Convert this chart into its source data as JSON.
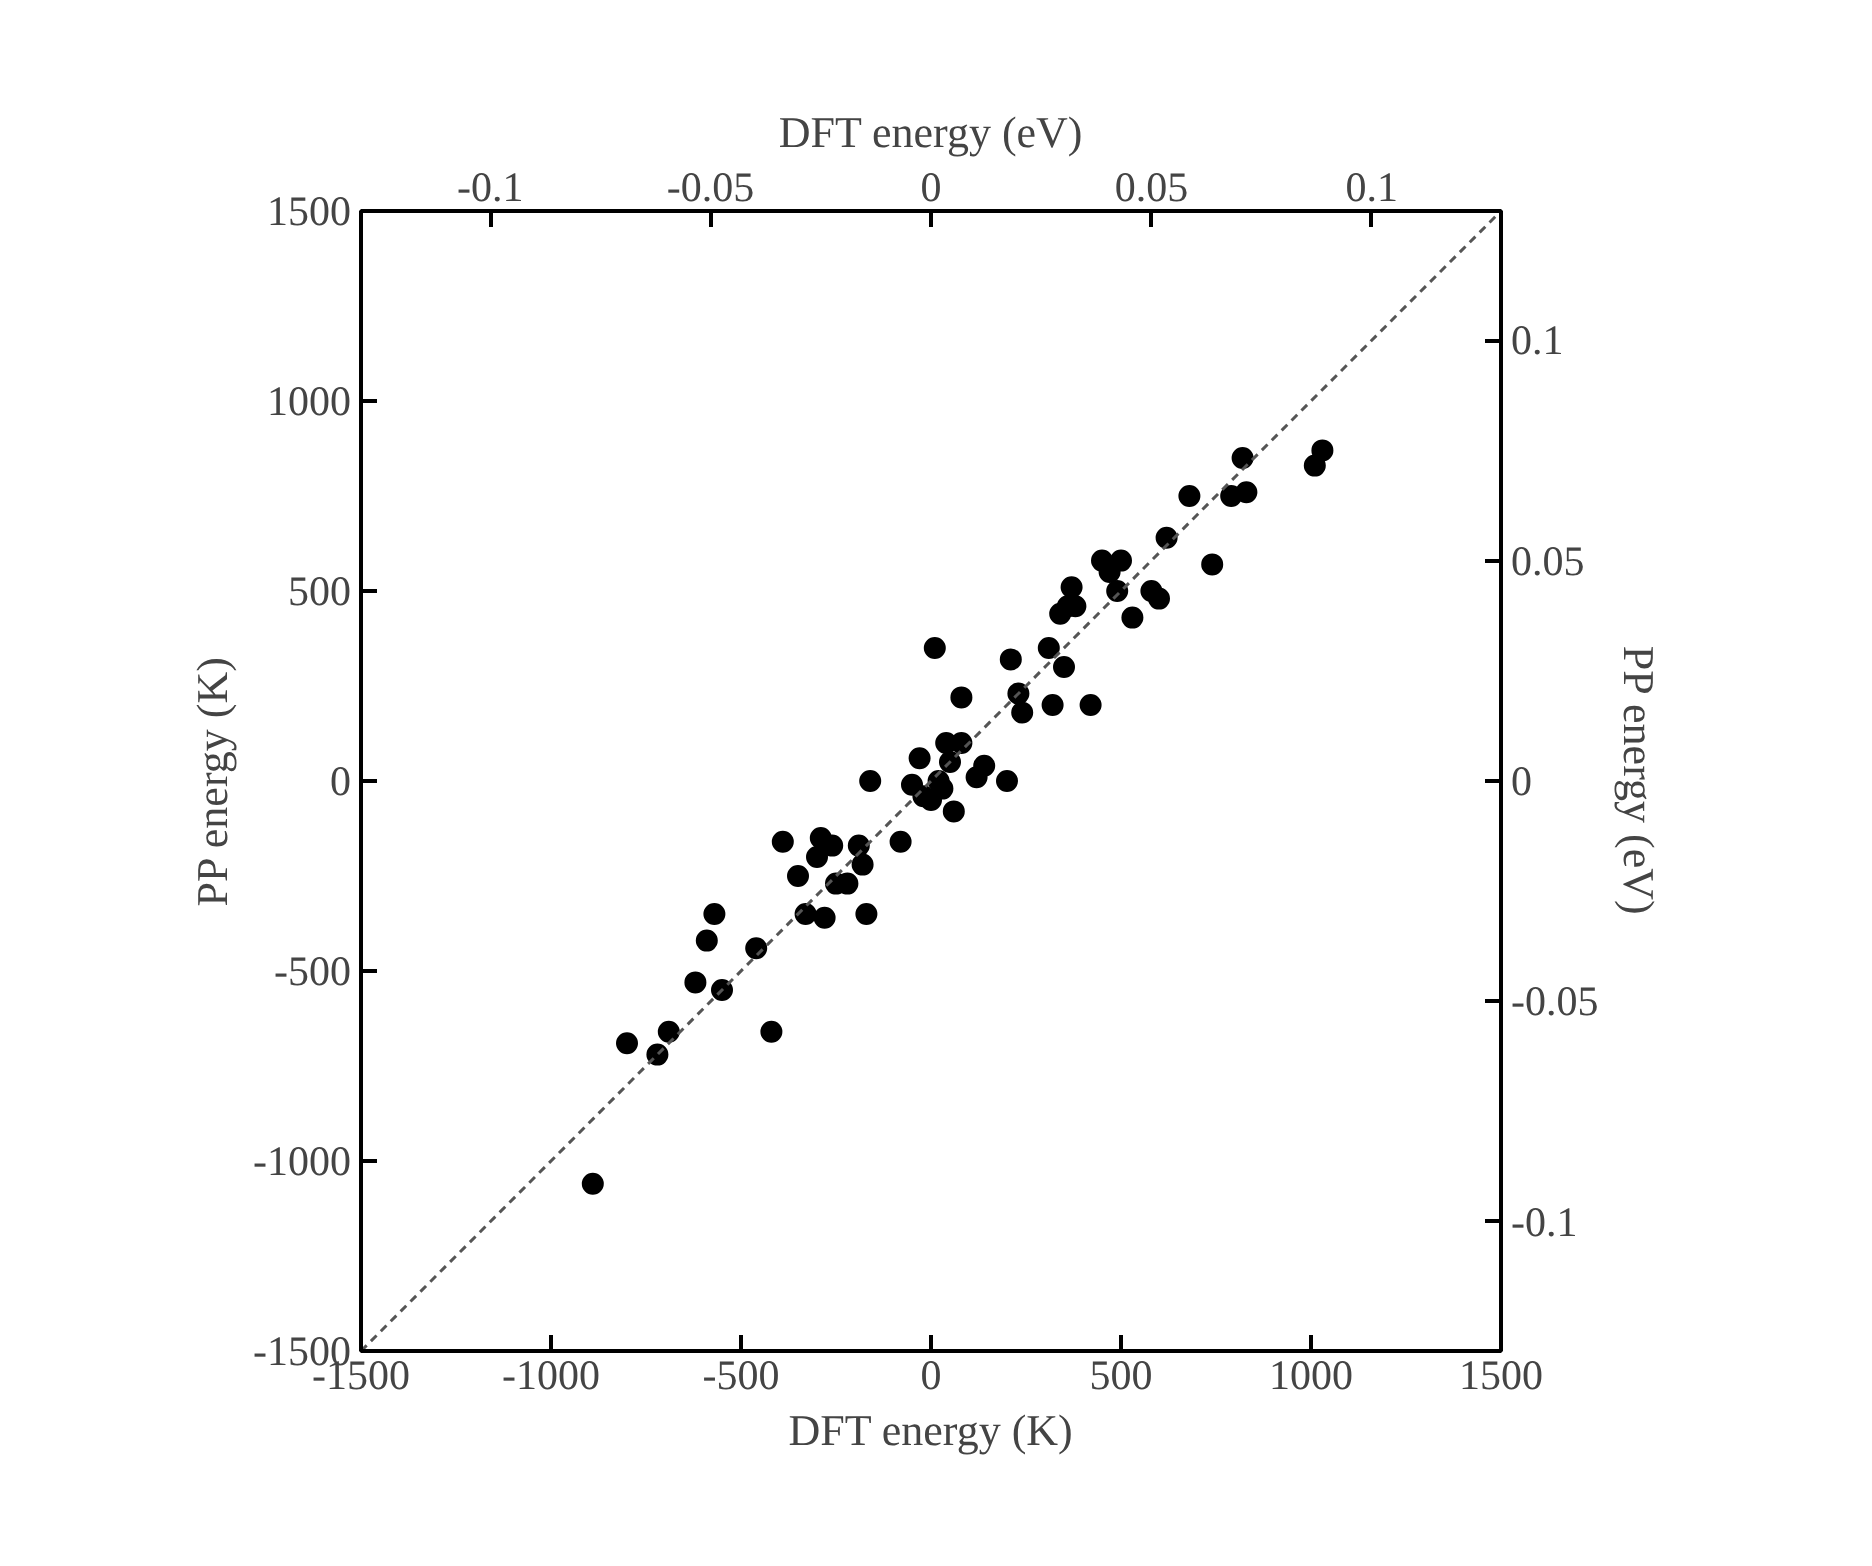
{
  "chart_data": {
    "type": "scatter",
    "xlabel": "DFT energy (K)",
    "ylabel": "PP energy (K)",
    "x2label": "DFT energy (eV)",
    "y2label": "PP energy (eV)",
    "xlim": [
      -1500,
      1500
    ],
    "ylim": [
      -1500,
      1500
    ],
    "xticks": [
      -1500,
      -1000,
      -500,
      0,
      500,
      1000,
      1500
    ],
    "yticks": [
      -1500,
      -1000,
      -500,
      0,
      500,
      1000,
      1500
    ],
    "x2lim": [
      -0.1293,
      0.1293
    ],
    "x2ticks": [
      -0.1,
      -0.05,
      0,
      0.05,
      0.1
    ],
    "y2lim": [
      -0.1293,
      0.1293
    ],
    "y2ticks": [
      -0.1,
      -0.05,
      0,
      0.05,
      0.1
    ],
    "grid": false,
    "series": [
      {
        "color": "#000000",
        "marker": "circle",
        "x": [
          -890,
          -800,
          -720,
          -690,
          -620,
          -590,
          -570,
          -550,
          -460,
          -420,
          -390,
          -350,
          -330,
          -300,
          -290,
          -280,
          -260,
          -250,
          -220,
          -190,
          -180,
          -170,
          -160,
          -80,
          -50,
          -30,
          -20,
          0,
          10,
          20,
          30,
          40,
          50,
          60,
          80,
          80,
          120,
          140,
          200,
          210,
          230,
          240,
          310,
          320,
          340,
          350,
          360,
          370,
          380,
          420,
          450,
          470,
          490,
          500,
          530,
          580,
          600,
          620,
          680,
          740,
          790,
          820,
          830,
          1010,
          1030
        ],
        "values": [
          -1060,
          -690,
          -720,
          -660,
          -530,
          -420,
          -350,
          -550,
          -440,
          -660,
          -160,
          -250,
          -350,
          -200,
          -150,
          -360,
          -170,
          -270,
          -270,
          -170,
          -220,
          -350,
          0,
          -160,
          -10,
          60,
          -40,
          -50,
          350,
          0,
          -20,
          100,
          50,
          -80,
          220,
          100,
          10,
          40,
          0,
          320,
          230,
          180,
          350,
          200,
          440,
          300,
          460,
          510,
          460,
          200,
          580,
          550,
          500,
          580,
          430,
          500,
          480,
          640,
          750,
          570,
          750,
          850,
          760,
          830,
          870
        ]
      },
      {
        "type": "line",
        "color": "#555555",
        "line_style": "dashed",
        "marker": "none",
        "x": [
          -1500,
          1500
        ],
        "values": [
          -1500,
          1500
        ]
      }
    ]
  }
}
